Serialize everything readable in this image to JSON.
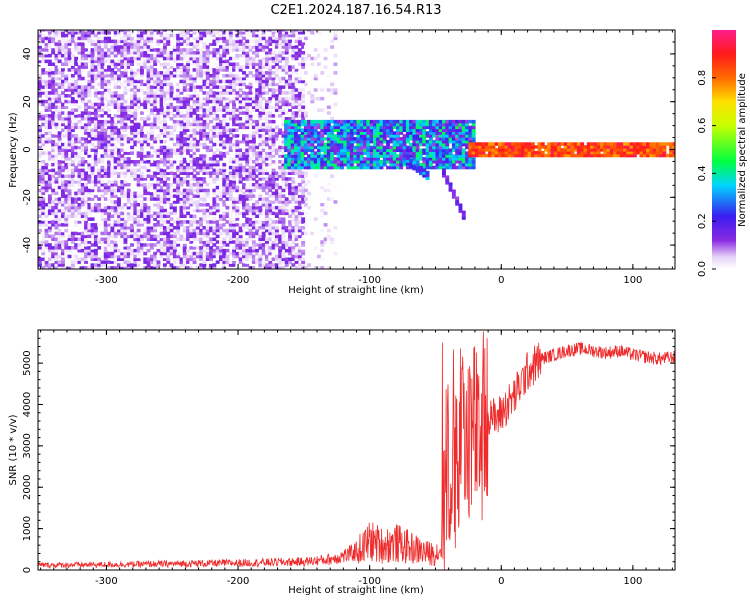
{
  "figure": {
    "title": "C2E1.2024.187.16.54.R13"
  },
  "chart_data": [
    {
      "type": "heatmap",
      "title": "",
      "xlabel": "Height of straight line (km)",
      "ylabel": "Frequency (Hz)",
      "xlim": [
        -352,
        132
      ],
      "ylim": [
        -50,
        50
      ],
      "xticks": [
        -300,
        -200,
        -100,
        0,
        100
      ],
      "yticks": [
        -40,
        -20,
        0,
        20,
        40
      ],
      "xtick_labels": [
        "-300",
        "-200",
        "-100",
        "0",
        "100"
      ],
      "ytick_labels": [
        "-40",
        "-20",
        "0",
        "20",
        "40"
      ],
      "colorbar": {
        "label": "Normalized spectral amplitude",
        "range": [
          0,
          1
        ],
        "ticks": [
          0.0,
          0.2,
          0.4,
          0.6,
          0.8
        ],
        "tick_labels": [
          "0.0",
          "0.2",
          "0.4",
          "0.6",
          "0.8"
        ],
        "colormap": "rainbow (white-lavender low, purple, blue, cyan, green, yellow, orange, red, pink high)"
      },
      "regions": [
        {
          "x": [
            -352,
            -150
          ],
          "freq": [
            -50,
            50
          ],
          "amplitude": [
            0.0,
            0.15
          ],
          "pattern": "broadband noise"
        },
        {
          "x": [
            -150,
            -125
          ],
          "freq": [
            -50,
            50
          ],
          "amplitude": [
            0.0,
            0.08
          ],
          "pattern": "sparse noise, fading"
        },
        {
          "x": [
            -165,
            -20
          ],
          "freq": [
            -8,
            12
          ],
          "amplitude": [
            0.1,
            0.45
          ],
          "pattern": "narrowband signal near 0 Hz"
        },
        {
          "x": [
            -75,
            -55
          ],
          "freq": [
            -12,
            -4
          ],
          "amplitude": [
            0.15,
            0.35
          ],
          "pattern": "downward branch"
        },
        {
          "x": [
            -45,
            -28
          ],
          "freq": [
            -30,
            -10
          ],
          "amplitude": [
            0.1,
            0.2
          ],
          "pattern": "downward branch"
        },
        {
          "x": [
            -25,
            132
          ],
          "freq": [
            -3,
            3
          ],
          "amplitude": [
            0.75,
            0.95
          ],
          "pattern": "strong line at 0 Hz"
        }
      ]
    },
    {
      "type": "line",
      "title": "",
      "xlabel": "Height of straight line (km)",
      "ylabel": "SNR (10 * v/v)",
      "xlim": [
        -352,
        132
      ],
      "ylim": [
        0,
        5800
      ],
      "xticks": [
        -300,
        -200,
        -100,
        0,
        100
      ],
      "yticks": [
        0,
        1000,
        2000,
        3000,
        4000,
        5000
      ],
      "xtick_labels": [
        "-300",
        "-200",
        "-100",
        "0",
        "100"
      ],
      "ytick_labels": [
        "0",
        "1000",
        "2000",
        "3000",
        "4000",
        "5000"
      ],
      "color": "#ee2a2a",
      "series": [
        {
          "x": [
            -352,
            -300,
            -250,
            -200,
            -150,
            -130,
            -115,
            -105,
            -100,
            -90,
            -80,
            -70,
            -60,
            -55,
            -50,
            -46,
            -43,
            -40,
            -35,
            -30,
            -25,
            -20,
            -15,
            -12,
            -8,
            -5,
            0,
            5,
            10,
            15,
            20,
            30,
            40,
            50,
            60,
            70,
            80,
            90,
            100,
            110,
            120,
            132
          ],
          "y": [
            120,
            130,
            150,
            170,
            200,
            260,
            380,
            550,
            700,
            600,
            650,
            550,
            450,
            400,
            400,
            500,
            2000,
            2600,
            2700,
            3200,
            3500,
            3300,
            3700,
            3400,
            3900,
            3600,
            3800,
            4000,
            4200,
            4500,
            4800,
            5100,
            5200,
            5300,
            5350,
            5300,
            5250,
            5300,
            5200,
            5150,
            5100,
            5150
          ]
        }
      ]
    }
  ]
}
